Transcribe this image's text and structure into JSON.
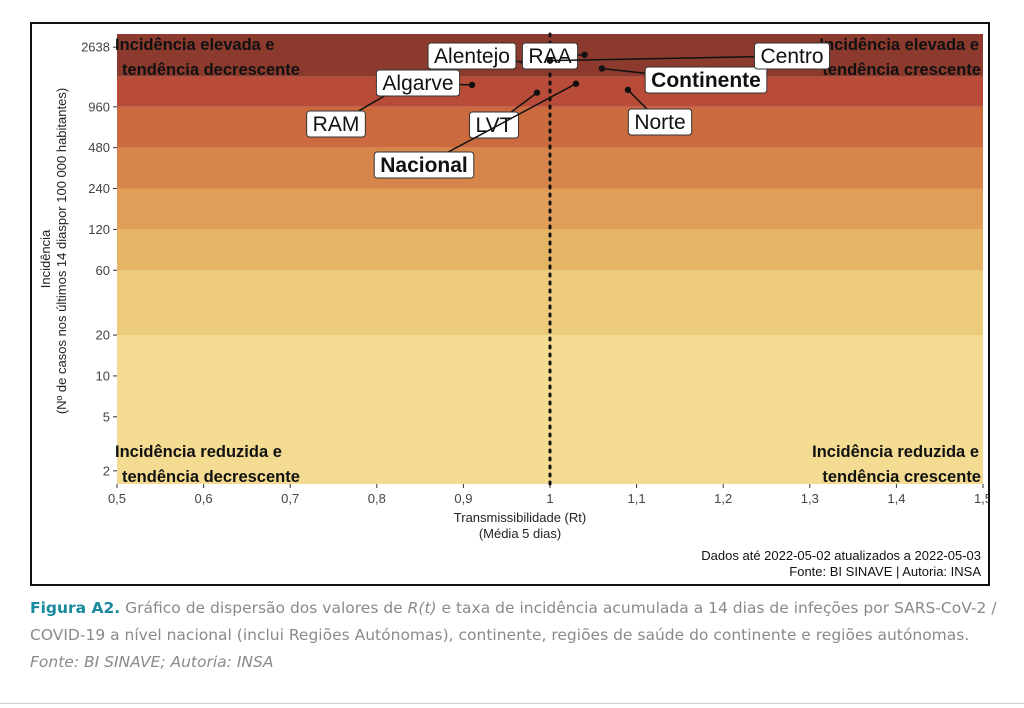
{
  "chart_data": {
    "type": "scatter",
    "xlabel": "Transmissibilidade (Rt)",
    "xlabel2": "(Média 5 dias)",
    "ylabel": "Incidência",
    "ylabel2": "(Nº de casos nos últimos 14 diaspor 100 000 habitantes)",
    "x_range": [
      0.5,
      1.5
    ],
    "y_range": [
      1.6,
      3300
    ],
    "y_scale": "log",
    "x_ticks": [
      0.5,
      0.6,
      0.7,
      0.8,
      0.9,
      1,
      1.1,
      1.2,
      1.3,
      1.4,
      1.5
    ],
    "x_tick_labels": [
      "0,5",
      "0,6",
      "0,7",
      "0,8",
      "0,9",
      "1",
      "1,1",
      "1,2",
      "1,3",
      "1,4",
      "1,5"
    ],
    "y_ticks": [
      2,
      5,
      10,
      20,
      60,
      120,
      240,
      480,
      960,
      2638
    ],
    "y_tick_labels": [
      "2",
      "5",
      "10",
      "20",
      "60",
      "120",
      "240",
      "480",
      "960",
      "2638"
    ],
    "bands": [
      {
        "from": 1.6,
        "to": 20,
        "color": "#f3dc92"
      },
      {
        "from": 20,
        "to": 60,
        "color": "#eccb7a"
      },
      {
        "from": 60,
        "to": 120,
        "color": "#e5b565"
      },
      {
        "from": 120,
        "to": 240,
        "color": "#e19e58"
      },
      {
        "from": 240,
        "to": 480,
        "color": "#d8854b"
      },
      {
        "from": 480,
        "to": 960,
        "color": "#cc6a3f"
      },
      {
        "from": 960,
        "to": 1600,
        "color": "#b84c38"
      },
      {
        "from": 1600,
        "to": 3300,
        "color": "#8c3a2e"
      }
    ],
    "reference_line_x": 1,
    "points": [
      {
        "label": "RAM",
        "x": 0.83,
        "y": 1380,
        "bold": false
      },
      {
        "label": "Algarve",
        "x": 0.91,
        "y": 1390,
        "bold": false
      },
      {
        "label": "Alentejo",
        "x": 0.97,
        "y": 2050,
        "bold": false
      },
      {
        "label": "LVT",
        "x": 0.985,
        "y": 1220,
        "bold": false
      },
      {
        "label": "RAA",
        "x": 1.04,
        "y": 2320,
        "bold": false
      },
      {
        "label": "Nacional",
        "x": 1.03,
        "y": 1420,
        "bold": true
      },
      {
        "label": "Continente",
        "x": 1.06,
        "y": 1840,
        "bold": true
      },
      {
        "label": "Norte",
        "x": 1.09,
        "y": 1280,
        "bold": false
      },
      {
        "label": "Centro",
        "x": 1.0,
        "y": 2100,
        "bold": false
      }
    ],
    "quadrant_labels": {
      "top_left": [
        "Incidência elevada e",
        "tendência decrescente"
      ],
      "top_right": [
        "Incidência elevada e",
        "tendência crescente"
      ],
      "bottom_left": [
        "Incidência reduzida e",
        "tendência decrescente"
      ],
      "bottom_right": [
        "Incidência reduzida e",
        "tendência crescente"
      ]
    },
    "footer_line1": "Dados até 2022-05-02 atualizados a 2022-05-03",
    "footer_line2": "Fonte: BI SINAVE | Autoria: INSA"
  },
  "caption": {
    "label": "Figura A2.",
    "text_a": " Gráfico de dispersão dos valores de ",
    "text_rt": "R(t)",
    "text_b": " e taxa de incidência acumulada a 14 dias de infeções por SARS-CoV-2 / COVID-19 a nível nacional (inclui Regiões Autónomas), continente, regiões de saúde do continente e regiões autónomas. ",
    "source": "Fonte: BI SINAVE; Autoria: INSA"
  }
}
